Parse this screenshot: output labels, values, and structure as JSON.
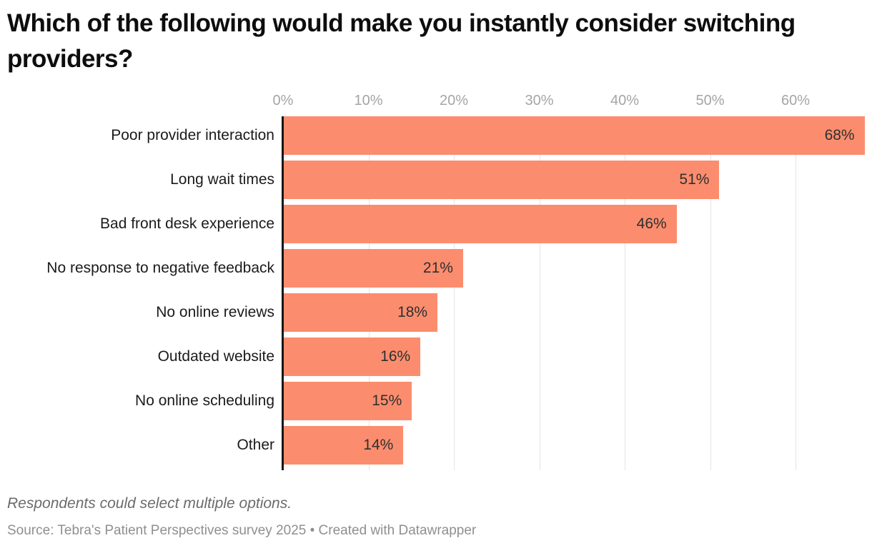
{
  "header": {
    "title": "Which of the following would make you instantly consider switching providers?"
  },
  "chart_data": {
    "type": "bar",
    "orientation": "horizontal",
    "title": "Which of the following would make you instantly consider switching providers?",
    "categories": [
      "Poor provider interaction",
      "Long wait times",
      "Bad front desk experience",
      "No response to negative feedback",
      "No online reviews",
      "Outdated website",
      "No online scheduling",
      "Other"
    ],
    "values": [
      68,
      51,
      46,
      21,
      18,
      16,
      15,
      14
    ],
    "value_labels": [
      "68%",
      "51%",
      "46%",
      "21%",
      "18%",
      "16%",
      "15%",
      "14%"
    ],
    "x_tick_values": [
      0,
      10,
      20,
      30,
      40,
      50,
      60
    ],
    "x_tick_labels": [
      "0%",
      "10%",
      "20%",
      "30%",
      "40%",
      "50%",
      "60%"
    ],
    "xlim": [
      0,
      69
    ],
    "grid": true,
    "legend": "none",
    "bar_color": "#fb8d6e",
    "xlabel": "",
    "ylabel": ""
  },
  "footer": {
    "note": "Respondents could select multiple options.",
    "source": "Source: Tebra's Patient Perspectives survey 2025 • Created with Datawrapper"
  },
  "colors": {
    "bar": "#fb8d6e",
    "title_text": "#0d0d0d",
    "category_text": "#1b1b1b",
    "value_text": "#2f2f2f",
    "axis_tick_text": "#a5a5a5",
    "gridline": "#e4e4e4",
    "axis_line": "#161616",
    "footnote_text": "#6b6b6b",
    "source_text": "#8f8f8f",
    "background": "#ffffff"
  }
}
